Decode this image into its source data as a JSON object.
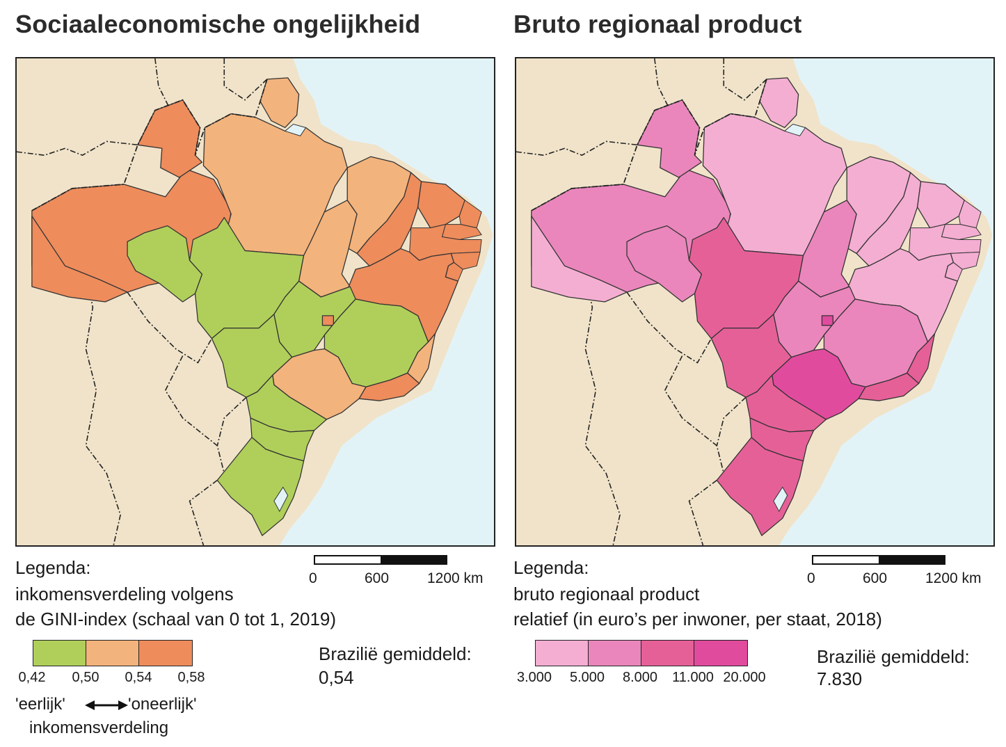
{
  "colors": {
    "ocean": "#e2f3f8",
    "land": "#f0e3c9",
    "gini_low": "#b0cf5a",
    "gini_mid": "#f3b37c",
    "gini_high": "#ee8c5c",
    "brp_1": "#f4aed2",
    "brp_2": "#ea86bc",
    "brp_3": "#e66098",
    "brp_4": "#e14b9e"
  },
  "left": {
    "title": "Sociaaleconomische ongelijkheid",
    "legend_line1": "Legenda:",
    "legend_line2": "inkomensverdeling volgens",
    "legend_line3": "de GINI-index (schaal van 0 tot 1, 2019)",
    "scale": [
      "0",
      "600",
      "1200 km"
    ],
    "classes": [
      "0,42",
      "0,50",
      "0,54",
      "0,58"
    ],
    "avg_label": "Brazilië gemiddeld:",
    "avg_value": "0,54",
    "arrow_left": "'eerlijk'",
    "arrow_right": "'oneerlijk'",
    "arrow_sub": "inkomensverdeling"
  },
  "right": {
    "title": "Bruto regionaal product",
    "legend_line1": "Legenda:",
    "legend_line2": "bruto regionaal product",
    "legend_line3": "relatief (in euro’s per inwoner, per staat, 2018)",
    "scale": [
      "0",
      "600",
      "1200 km"
    ],
    "classes": [
      "3.000",
      "5.000",
      "8.000",
      "11.000",
      "20.000"
    ],
    "avg_label": "Brazilië gemiddeld:",
    "avg_value": "7.830"
  },
  "states": [
    {
      "id": "AM",
      "gini": "high",
      "brp": "2"
    },
    {
      "id": "RR",
      "gini": "high",
      "brp": "2"
    },
    {
      "id": "AC",
      "gini": "high",
      "brp": "1"
    },
    {
      "id": "RO",
      "gini": "low",
      "brp": "2"
    },
    {
      "id": "PA",
      "gini": "mid",
      "brp": "1"
    },
    {
      "id": "AP",
      "gini": "mid",
      "brp": "1"
    },
    {
      "id": "MT",
      "gini": "low",
      "brp": "3"
    },
    {
      "id": "TO",
      "gini": "mid",
      "brp": "2"
    },
    {
      "id": "MA",
      "gini": "mid",
      "brp": "1"
    },
    {
      "id": "PI",
      "gini": "high",
      "brp": "1"
    },
    {
      "id": "CE",
      "gini": "high",
      "brp": "1"
    },
    {
      "id": "RN",
      "gini": "high",
      "brp": "1"
    },
    {
      "id": "PB",
      "gini": "high",
      "brp": "1"
    },
    {
      "id": "PE",
      "gini": "high",
      "brp": "1"
    },
    {
      "id": "AL",
      "gini": "high",
      "brp": "1"
    },
    {
      "id": "SE",
      "gini": "high",
      "brp": "1"
    },
    {
      "id": "BA",
      "gini": "high",
      "brp": "1"
    },
    {
      "id": "GO",
      "gini": "low",
      "brp": "2"
    },
    {
      "id": "DF",
      "gini": "high",
      "brp": "4"
    },
    {
      "id": "MG",
      "gini": "low",
      "brp": "2"
    },
    {
      "id": "ES",
      "gini": "mid",
      "brp": "3"
    },
    {
      "id": "MS",
      "gini": "low",
      "brp": "3"
    },
    {
      "id": "SP",
      "gini": "mid",
      "brp": "4"
    },
    {
      "id": "RJ",
      "gini": "high",
      "brp": "3"
    },
    {
      "id": "PR",
      "gini": "low",
      "brp": "3"
    },
    {
      "id": "SC",
      "gini": "low",
      "brp": "3"
    },
    {
      "id": "RS",
      "gini": "low",
      "brp": "3"
    }
  ]
}
